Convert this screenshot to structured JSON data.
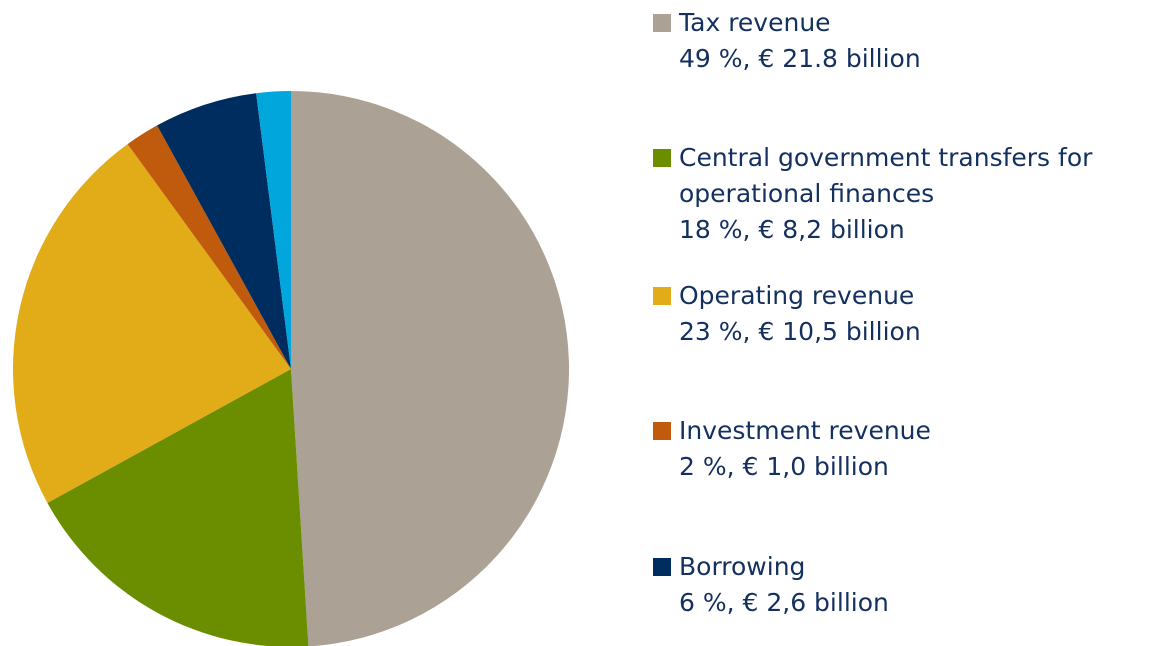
{
  "chart_data": {
    "type": "pie",
    "categories": [
      "Tax revenue",
      "Central government transfers for operational finances",
      "Operating revenue",
      "Investment revenue",
      "Borrowing",
      null
    ],
    "values": [
      49,
      18,
      23,
      2,
      6,
      2
    ],
    "value_labels": [
      "49 %, € 21.8 billion",
      "18 %, € 8,2 billion",
      "23 %, € 10,5 billion",
      "2 %, € 1,0 billion",
      "6 %, € 2,6 billion",
      null
    ],
    "colors": [
      "#aca195",
      "#6b8e00",
      "#e1ac18",
      "#c05a0c",
      "#002d5f",
      "#00a6dc"
    ]
  }
}
